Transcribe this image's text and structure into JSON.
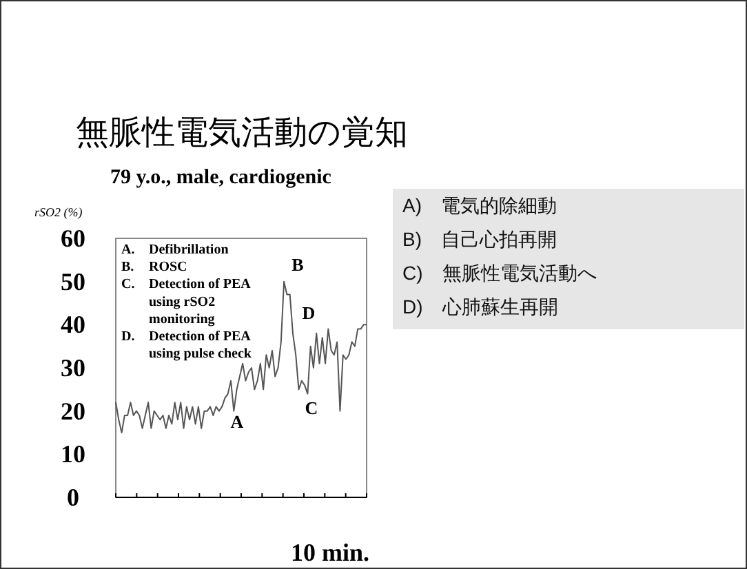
{
  "chart_data": [
    {
      "type": "line",
      "title": "無脈性電気活動の覚知",
      "subtitle": "79 y.o., male, cardiogenic",
      "ylabel": "rSO2 (%)",
      "xlabel": "10 min.",
      "categories": [
        null,
        null,
        null,
        null,
        null,
        null,
        null,
        null,
        null,
        null,
        null,
        null,
        null,
        null,
        null,
        null,
        null,
        null,
        null,
        null,
        null,
        null,
        null,
        null,
        null,
        null,
        null,
        null,
        null,
        null,
        null,
        null,
        null,
        null,
        null,
        null,
        null,
        null,
        null,
        null,
        null,
        null,
        null,
        null,
        null,
        null,
        null,
        null,
        null,
        null,
        null,
        null,
        null,
        null,
        null,
        null,
        null,
        null,
        null,
        null,
        null,
        null,
        null,
        null,
        null,
        null,
        null,
        null,
        null,
        null,
        null,
        null,
        null,
        null,
        null,
        null,
        null,
        null,
        null,
        null,
        null,
        null,
        null,
        null,
        null,
        null
      ],
      "ylim": [
        0,
        60
      ],
      "yticks": [
        0,
        10,
        20,
        30,
        40,
        50,
        60
      ],
      "series": [
        {
          "color": "#555555",
          "values": [
            22,
            18,
            15,
            19,
            19,
            22,
            19,
            20,
            19,
            16,
            19,
            22,
            16,
            20,
            19,
            18,
            19,
            16,
            19,
            17,
            22,
            18,
            22,
            16,
            21,
            18,
            21,
            17,
            21,
            16,
            20,
            20,
            21,
            19,
            21,
            20,
            21,
            23,
            24,
            27,
            20,
            25,
            28,
            31,
            27,
            29,
            30,
            25,
            27,
            31,
            25,
            33,
            30,
            34,
            28,
            30,
            36,
            50,
            47,
            47,
            38,
            33,
            25,
            27,
            26,
            24,
            35,
            30,
            38,
            31,
            37,
            31,
            39,
            34,
            33,
            36,
            20,
            33,
            32,
            33,
            36,
            35,
            39,
            39,
            40,
            40
          ]
        }
      ],
      "annotations": [
        "A. Defibrillation",
        "B. ROSC",
        "C. Detection of PEA using rSO2 monitoring",
        "D. Detection of PEA using pulse check",
        "A",
        "B",
        "C",
        "D"
      ]
    },
    {
      "type": "other",
      "annotations": [
        "A)　電気的除細動",
        "B)　自己心拍再開",
        "C)　無脈性電気活動へ",
        "D)　心肺蘇生再開"
      ]
    }
  ]
}
